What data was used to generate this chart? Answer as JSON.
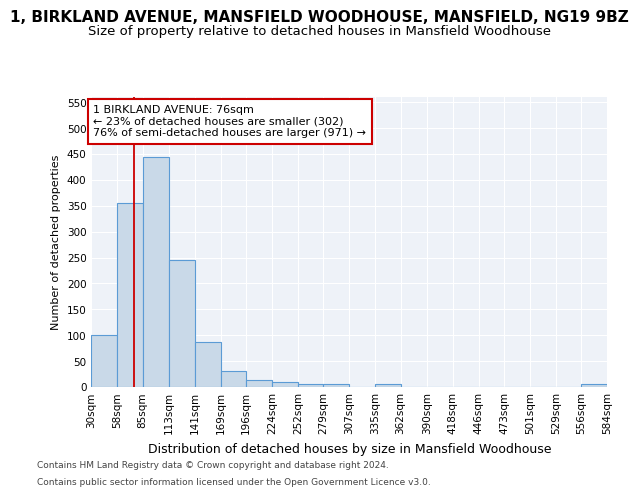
{
  "title": "1, BIRKLAND AVENUE, MANSFIELD WOODHOUSE, MANSFIELD, NG19 9BZ",
  "subtitle": "Size of property relative to detached houses in Mansfield Woodhouse",
  "xlabel": "Distribution of detached houses by size in Mansfield Woodhouse",
  "ylabel": "Number of detached properties",
  "bin_edges": [
    30,
    58,
    85,
    113,
    141,
    169,
    196,
    224,
    252,
    279,
    307,
    335,
    362,
    390,
    418,
    446,
    473,
    501,
    529,
    556,
    584
  ],
  "bar_heights": [
    100,
    355,
    445,
    245,
    87,
    30,
    13,
    9,
    5,
    5,
    0,
    6,
    0,
    0,
    0,
    0,
    0,
    0,
    0,
    5
  ],
  "bar_color": "#c9d9e8",
  "bar_edge_color": "#5b9bd5",
  "bar_linewidth": 0.8,
  "vline_x": 76,
  "vline_color": "#cc0000",
  "ylim": [
    0,
    560
  ],
  "yticks": [
    0,
    50,
    100,
    150,
    200,
    250,
    300,
    350,
    400,
    450,
    500,
    550
  ],
  "annotation_title": "1 BIRKLAND AVENUE: 76sqm",
  "annotation_line1": "← 23% of detached houses are smaller (302)",
  "annotation_line2": "76% of semi-detached houses are larger (971) →",
  "annotation_box_color": "#ffffff",
  "annotation_box_edge": "#cc0000",
  "footer_line1": "Contains HM Land Registry data © Crown copyright and database right 2024.",
  "footer_line2": "Contains public sector information licensed under the Open Government Licence v3.0.",
  "bg_color": "#eef2f8",
  "grid_color": "#ffffff",
  "fig_bg_color": "#ffffff",
  "title_fontsize": 11,
  "subtitle_fontsize": 9.5,
  "xlabel_fontsize": 9,
  "ylabel_fontsize": 8,
  "tick_fontsize": 7.5,
  "annotation_fontsize": 8,
  "footer_fontsize": 6.5
}
